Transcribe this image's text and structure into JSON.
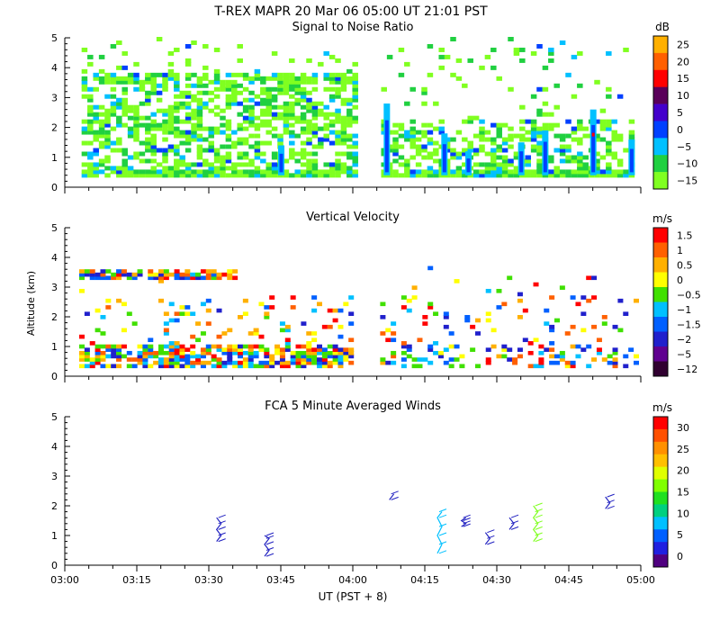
{
  "header": {
    "title": "T-REX   MAPR 20 Mar 06   05:00 UT   21:01   PST"
  },
  "x_axis": {
    "label": "UT  (PST + 8)",
    "ticks": [
      "03:00",
      "03:15",
      "03:30",
      "03:45",
      "04:00",
      "04:15",
      "04:30",
      "04:45",
      "05:00"
    ]
  },
  "y_axis_label": "Altitude (km)",
  "panels": [
    {
      "title": "Signal to Noise Ratio",
      "unit": "dB",
      "yticks": [
        "0",
        "1",
        "2",
        "3",
        "4",
        "5"
      ],
      "colorbar_labels": [
        "25",
        "20",
        "15",
        "10",
        "5",
        "0",
        "−5",
        "−10",
        "−15"
      ],
      "colors": [
        "#ffb000",
        "#ff6000",
        "#ff0000",
        "#5a005a",
        "#4400cc",
        "#0040ff",
        "#00c0ff",
        "#20d040",
        "#80ff20"
      ]
    },
    {
      "title": "Vertical Velocity",
      "unit": "m/s",
      "yticks": [
        "0",
        "1",
        "2",
        "3",
        "4",
        "5"
      ],
      "colorbar_labels": [
        "1.5",
        "1",
        "0.5",
        "0",
        "−0.5",
        "−1",
        "−1.5",
        "−2",
        "−5",
        "−12"
      ],
      "colors": [
        "#ff0000",
        "#ff6000",
        "#ffb000",
        "#ffff00",
        "#40e000",
        "#00c0ff",
        "#0060ff",
        "#2020cc",
        "#600090",
        "#300030"
      ]
    },
    {
      "title": "FCA 5 Minute Averaged Winds",
      "unit": "m/s",
      "yticks": [
        "0",
        "1",
        "2",
        "3",
        "4",
        "5"
      ],
      "colorbar_labels": [
        "30",
        "25",
        "20",
        "15",
        "10",
        "5",
        "0"
      ],
      "colors": [
        "#ff0000",
        "#ff5000",
        "#ff9000",
        "#ffc000",
        "#e0ff00",
        "#80ff00",
        "#20e020",
        "#00d080",
        "#00c0ff",
        "#0060ff",
        "#2020e0",
        "#500080"
      ]
    }
  ],
  "chart_data": [
    {
      "type": "heatmap",
      "title": "Signal to Noise Ratio",
      "xlabel": "UT  (PST + 8)",
      "ylabel": "Altitude (km)",
      "xlim": [
        "03:00",
        "05:00"
      ],
      "ylim": [
        0,
        5
      ],
      "colorbar": {
        "unit": "dB",
        "ticks": [
          25,
          20,
          15,
          10,
          5,
          0,
          -5,
          -10,
          -15
        ],
        "range": [
          -15,
          30
        ]
      },
      "data_gap": [
        "04:00",
        "04:05"
      ],
      "strong_echo_columns": [
        {
          "time": "03:45",
          "top_km": 1.4,
          "peak_db": 5
        },
        {
          "time": "04:07",
          "top_km": 2.8,
          "peak_db": 0
        },
        {
          "time": "04:19",
          "top_km": 1.8,
          "peak_db": 5
        },
        {
          "time": "04:24",
          "top_km": 1.2,
          "peak_db": 5
        },
        {
          "time": "04:35",
          "top_km": 1.5,
          "peak_db": 5
        },
        {
          "time": "04:40",
          "top_km": 1.9,
          "peak_db": 5
        },
        {
          "time": "04:50",
          "top_km": 2.6,
          "peak_db": 15
        },
        {
          "time": "04:58",
          "top_km": 1.6,
          "peak_db": 0
        }
      ]
    },
    {
      "type": "heatmap",
      "title": "Vertical Velocity",
      "xlabel": "UT  (PST + 8)",
      "ylabel": "Altitude (km)",
      "xlim": [
        "03:00",
        "05:00"
      ],
      "ylim": [
        0,
        5
      ],
      "colorbar": {
        "unit": "m/s",
        "ticks": [
          1.5,
          1,
          0.5,
          0,
          -0.5,
          -1,
          -1.5,
          -2,
          -5,
          -12
        ]
      },
      "data_gap": [
        "04:00",
        "04:05"
      ]
    },
    {
      "type": "scatter",
      "title": "FCA 5 Minute Averaged Winds",
      "xlabel": "UT  (PST + 8)",
      "ylabel": "Altitude (km)",
      "xlim": [
        "03:00",
        "05:00"
      ],
      "ylim": [
        0,
        5
      ],
      "colorbar": {
        "unit": "m/s",
        "ticks": [
          30,
          25,
          20,
          15,
          10,
          5,
          0
        ],
        "range": [
          0,
          32
        ]
      },
      "wind_profiles": [
        {
          "time": "03:32",
          "altitude_km": [
            0.8,
            1.0,
            1.2,
            1.4,
            1.6
          ],
          "speed_ms": 4
        },
        {
          "time": "03:42",
          "altitude_km": [
            0.3,
            0.5,
            0.7,
            0.9,
            1.0
          ],
          "speed_ms": 4
        },
        {
          "time": "04:08",
          "altitude_km": [
            2.2,
            2.4
          ],
          "speed_ms": 4
        },
        {
          "time": "04:18",
          "altitude_km": [
            0.4,
            0.7,
            1.0,
            1.3,
            1.6,
            1.8
          ],
          "speed_ms": 6
        },
        {
          "time": "04:23",
          "altitude_km": [
            1.3,
            1.4,
            1.5,
            1.6
          ],
          "speed_ms": 5
        },
        {
          "time": "04:28",
          "altitude_km": [
            0.7,
            0.9,
            1.1
          ],
          "speed_ms": 4
        },
        {
          "time": "04:33",
          "altitude_km": [
            1.2,
            1.4,
            1.6
          ],
          "speed_ms": 5
        },
        {
          "time": "04:38",
          "altitude_km": [
            0.8,
            1.0,
            1.2,
            1.4,
            1.6,
            1.8,
            2.0
          ],
          "speed_ms": 15
        },
        {
          "time": "04:53",
          "altitude_km": [
            1.9,
            2.1,
            2.3
          ],
          "speed_ms": 4
        }
      ]
    }
  ]
}
